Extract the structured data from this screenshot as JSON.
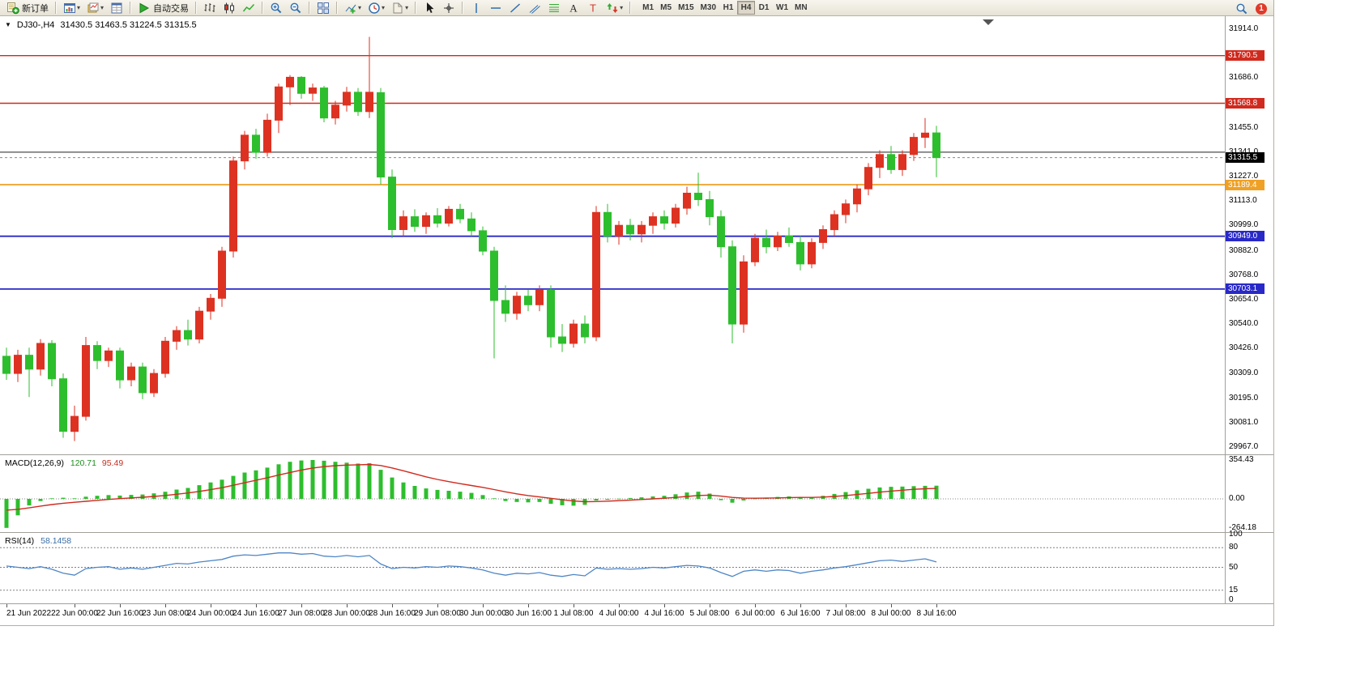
{
  "toolbar": {
    "groups": [
      {
        "items": [
          {
            "name": "new-order-button",
            "icon": "new-order-icon",
            "label": "新订单"
          }
        ]
      },
      {
        "items": [
          {
            "name": "new-chart-button",
            "icon": "new-chart-icon",
            "caret": true
          },
          {
            "name": "profiles-button",
            "icon": "profiles-icon",
            "caret": true
          },
          {
            "name": "data-window-button",
            "icon": "data-window-icon"
          }
        ]
      },
      {
        "items": [
          {
            "name": "autotrade-button",
            "icon": "autotrade-icon",
            "label": "自动交易"
          }
        ]
      },
      {
        "items": [
          {
            "name": "bars-button",
            "icon": "bars-icon"
          },
          {
            "name": "candlesticks-button",
            "icon": "candles-icon"
          },
          {
            "name": "line-chart-button",
            "icon": "line-chart-icon"
          }
        ]
      },
      {
        "items": [
          {
            "name": "zoom-in-button",
            "icon": "zoom-in-icon"
          },
          {
            "name": "zoom-out-button",
            "icon": "zoom-out-icon"
          }
        ]
      },
      {
        "items": [
          {
            "name": "tile-windows-button",
            "icon": "tile-windows-icon"
          }
        ]
      },
      {
        "items": [
          {
            "name": "indicators-button",
            "icon": "indicators-icon",
            "caret": true
          },
          {
            "name": "periods-button",
            "icon": "periods-icon",
            "caret": true
          },
          {
            "name": "templates-button",
            "icon": "templates-icon",
            "caret": true
          }
        ]
      },
      {
        "items": [
          {
            "name": "cursor-button",
            "icon": "cursor-icon"
          },
          {
            "name": "crosshair-button",
            "icon": "crosshair-icon"
          }
        ]
      },
      {
        "items": [
          {
            "name": "vertical-line-button",
            "icon": "vline-icon"
          },
          {
            "name": "horizontal-line-button",
            "icon": "hline-icon"
          },
          {
            "name": "trendline-button",
            "icon": "trendline-icon"
          },
          {
            "name": "channel-button",
            "icon": "channel-icon"
          },
          {
            "name": "fibonacci-button",
            "icon": "fibonacci-icon"
          },
          {
            "name": "text-button",
            "icon": "text-icon"
          },
          {
            "name": "label-button",
            "icon": "label-icon"
          },
          {
            "name": "arrows-button",
            "icon": "arrows-icon",
            "caret": true
          }
        ]
      }
    ],
    "timeframes": [
      "M1",
      "M5",
      "M15",
      "M30",
      "H1",
      "H4",
      "D1",
      "W1",
      "MN"
    ],
    "active_timeframe": "H4",
    "notification_badge": "1"
  },
  "symbol_bar": {
    "symbol": "DJ30-,H4",
    "ohlc_text": "31430.5 31463.5 31224.5 31315.5"
  },
  "colors": {
    "up": "#dd3222",
    "down": "#2dbe2d",
    "macd_hist": "#2dbe2d",
    "macd_signal": "#d02a1e",
    "rsi_line": "#4f86c6",
    "red_level": "#d02a1e",
    "orange_level": "#efa126",
    "blue_level": "#2929c8",
    "gray_level": "#4d4d4d",
    "current_tag_bg": "#000000"
  },
  "chart_data": {
    "type": "candlestick",
    "symbol": "DJ30-",
    "timeframe": "H4",
    "current_bar": {
      "open": 31430.5,
      "high": 31463.5,
      "low": 31224.5,
      "close": 31315.5
    },
    "price_scale": {
      "max": 31914.0,
      "min": 29967.0,
      "ticks": [
        31914.0,
        31686.0,
        31455.0,
        31341.0,
        31227.0,
        31113.0,
        30999.0,
        30882.0,
        30768.0,
        30654.0,
        30540.0,
        30426.0,
        30309.0,
        30195.0,
        30081.0,
        29967.0
      ]
    },
    "level_lines": [
      {
        "value": 31790.5,
        "color": "red_level",
        "width": 1.4,
        "tag": true
      },
      {
        "value": 31568.8,
        "color": "red_level",
        "width": 1.4,
        "tag": true
      },
      {
        "value": 31341.0,
        "color": "gray_level",
        "width": 1.2,
        "tag": false
      },
      {
        "value": 31189.4,
        "color": "orange_level",
        "width": 1.8,
        "tag": true
      },
      {
        "value": 30949.0,
        "color": "blue_level",
        "width": 1.8,
        "tag": true
      },
      {
        "value": 30703.1,
        "color": "blue_level",
        "width": 1.8,
        "tag": true
      }
    ],
    "current_price": 31315.5,
    "candles": [
      [
        30390,
        30430,
        30280,
        30310
      ],
      [
        30310,
        30420,
        30270,
        30395
      ],
      [
        30395,
        30430,
        30200,
        30330
      ],
      [
        30330,
        30470,
        30300,
        30450
      ],
      [
        30450,
        30465,
        30250,
        30285
      ],
      [
        30285,
        30310,
        30010,
        30040
      ],
      [
        30040,
        30160,
        29995,
        30110
      ],
      [
        30110,
        30480,
        30090,
        30440
      ],
      [
        30440,
        30460,
        30330,
        30370
      ],
      [
        30370,
        30430,
        30340,
        30415
      ],
      [
        30415,
        30430,
        30240,
        30280
      ],
      [
        30280,
        30360,
        30250,
        30340
      ],
      [
        30340,
        30360,
        30190,
        30220
      ],
      [
        30220,
        30330,
        30200,
        30310
      ],
      [
        30310,
        30480,
        30290,
        30460
      ],
      [
        30460,
        30530,
        30420,
        30510
      ],
      [
        30510,
        30560,
        30440,
        30470
      ],
      [
        30470,
        30620,
        30450,
        30600
      ],
      [
        30600,
        30680,
        30560,
        30660
      ],
      [
        30660,
        30900,
        30620,
        30880
      ],
      [
        30880,
        31320,
        30850,
        31300
      ],
      [
        31300,
        31440,
        31260,
        31420
      ],
      [
        31420,
        31450,
        31310,
        31340
      ],
      [
        31340,
        31520,
        31320,
        31490
      ],
      [
        31490,
        31660,
        31430,
        31645
      ],
      [
        31645,
        31700,
        31560,
        31690
      ],
      [
        31690,
        31695,
        31590,
        31615
      ],
      [
        31615,
        31660,
        31580,
        31640
      ],
      [
        31640,
        31650,
        31480,
        31500
      ],
      [
        31500,
        31580,
        31470,
        31560
      ],
      [
        31560,
        31645,
        31530,
        31620
      ],
      [
        31620,
        31640,
        31510,
        31530
      ],
      [
        31530,
        31878,
        31500,
        31620
      ],
      [
        31618,
        31640,
        31190,
        31225
      ],
      [
        31225,
        31260,
        30940,
        30980
      ],
      [
        30980,
        31070,
        30950,
        31040
      ],
      [
        31040,
        31075,
        30970,
        30995
      ],
      [
        30995,
        31060,
        30960,
        31045
      ],
      [
        31045,
        31080,
        30990,
        31010
      ],
      [
        31010,
        31090,
        30995,
        31075
      ],
      [
        31075,
        31100,
        31010,
        31030
      ],
      [
        31030,
        31060,
        30950,
        30975
      ],
      [
        30975,
        30995,
        30860,
        30880
      ],
      [
        30880,
        30900,
        30380,
        30650
      ],
      [
        30650,
        30720,
        30550,
        30590
      ],
      [
        30590,
        30690,
        30560,
        30670
      ],
      [
        30670,
        30700,
        30600,
        30630
      ],
      [
        30630,
        30720,
        30600,
        30700
      ],
      [
        30700,
        30720,
        30430,
        30480
      ],
      [
        30480,
        30540,
        30410,
        30450
      ],
      [
        30450,
        30560,
        30430,
        30540
      ],
      [
        30540,
        30580,
        30450,
        30480
      ],
      [
        30480,
        31090,
        30460,
        31060
      ],
      [
        31060,
        31100,
        30920,
        30950
      ],
      [
        30950,
        31020,
        30910,
        31000
      ],
      [
        31000,
        31030,
        30930,
        30960
      ],
      [
        30960,
        31020,
        30920,
        31000
      ],
      [
        31000,
        31060,
        30960,
        31040
      ],
      [
        31040,
        31070,
        30980,
        31010
      ],
      [
        31010,
        31100,
        30990,
        31080
      ],
      [
        31080,
        31180,
        31050,
        31150
      ],
      [
        31150,
        31245,
        31090,
        31120
      ],
      [
        31120,
        31160,
        31000,
        31040
      ],
      [
        31040,
        31070,
        30850,
        30900
      ],
      [
        30900,
        30930,
        30450,
        30540
      ],
      [
        30540,
        30860,
        30500,
        30830
      ],
      [
        30830,
        30960,
        30810,
        30940
      ],
      [
        30940,
        30980,
        30870,
        30900
      ],
      [
        30900,
        30970,
        30880,
        30950
      ],
      [
        30950,
        30990,
        30900,
        30920
      ],
      [
        30920,
        30950,
        30790,
        30820
      ],
      [
        30820,
        30940,
        30800,
        30920
      ],
      [
        30920,
        31000,
        30890,
        30980
      ],
      [
        30980,
        31070,
        30950,
        31050
      ],
      [
        31050,
        31120,
        31010,
        31100
      ],
      [
        31100,
        31190,
        31060,
        31170
      ],
      [
        31170,
        31290,
        31140,
        31270
      ],
      [
        31270,
        31350,
        31220,
        31330
      ],
      [
        31330,
        31370,
        31240,
        31260
      ],
      [
        31260,
        31350,
        31230,
        31330
      ],
      [
        31330,
        31430,
        31300,
        31410
      ],
      [
        31410,
        31500,
        31360,
        31430
      ],
      [
        31430.5,
        31463.5,
        31224.5,
        31315.5
      ]
    ],
    "time_labels": [
      {
        "bar": 0,
        "label": "21 Jun 2022"
      },
      {
        "bar": 6,
        "label": "22 Jun 00:00"
      },
      {
        "bar": 10,
        "label": "22 Jun 16:00"
      },
      {
        "bar": 14,
        "label": "23 Jun 08:00"
      },
      {
        "bar": 18,
        "label": "24 Jun 00:00"
      },
      {
        "bar": 22,
        "label": "24 Jun 16:00"
      },
      {
        "bar": 26,
        "label": "27 Jun 08:00"
      },
      {
        "bar": 30,
        "label": "28 Jun 00:00"
      },
      {
        "bar": 34,
        "label": "28 Jun 16:00"
      },
      {
        "bar": 38,
        "label": "29 Jun 08:00"
      },
      {
        "bar": 42,
        "label": "30 Jun 00:00"
      },
      {
        "bar": 46,
        "label": "30 Jun 16:00"
      },
      {
        "bar": 50,
        "label": "1 Jul 08:00"
      },
      {
        "bar": 54,
        "label": "4 Jul 00:00"
      },
      {
        "bar": 58,
        "label": "4 Jul 16:00"
      },
      {
        "bar": 62,
        "label": "5 Jul 08:00"
      },
      {
        "bar": 66,
        "label": "6 Jul 00:00"
      },
      {
        "bar": 70,
        "label": "6 Jul 16:00"
      },
      {
        "bar": 74,
        "label": "7 Jul 08:00"
      },
      {
        "bar": 78,
        "label": "8 Jul 00:00"
      },
      {
        "bar": 82,
        "label": "8 Jul 16:00"
      }
    ],
    "macd": {
      "name": "MACD(12,26,9)",
      "main_value": "120.71",
      "signal_value": "95.49",
      "max": 354.43,
      "min": -264.18,
      "axis_labels": [
        "354.43",
        "0.00",
        "-264.18"
      ],
      "histogram": [
        -264.18,
        -150,
        -60,
        -20,
        5,
        10,
        5,
        20,
        28,
        35,
        30,
        36,
        40,
        50,
        65,
        85,
        100,
        125,
        150,
        175,
        210,
        240,
        260,
        285,
        315,
        338,
        350,
        354.43,
        348,
        338,
        330,
        322,
        325,
        265,
        195,
        150,
        118,
        95,
        82,
        74,
        66,
        55,
        35,
        5,
        -20,
        -28,
        -32,
        -28,
        -45,
        -58,
        -62,
        -55,
        -15,
        -8,
        2,
        8,
        14,
        22,
        28,
        42,
        58,
        66,
        48,
        -12,
        -35,
        -15,
        4,
        12,
        18,
        22,
        16,
        14,
        28,
        45,
        62,
        78,
        92,
        104,
        110,
        112,
        116,
        119,
        120.71
      ],
      "signal": [
        -103,
        -95,
        -82,
        -66,
        -52,
        -40,
        -31,
        -22,
        -13,
        -5,
        2,
        9,
        15,
        22,
        31,
        42,
        54,
        68,
        84,
        102,
        124,
        147,
        170,
        193,
        217,
        241,
        263,
        281,
        294,
        303,
        308,
        311,
        314,
        304,
        282,
        256,
        228,
        201,
        177,
        157,
        139,
        122,
        105,
        85,
        64,
        46,
        30,
        18,
        5,
        -8,
        -19,
        -26,
        -24,
        -21,
        -16,
        -11,
        -6,
        0,
        6,
        13,
        22,
        31,
        34,
        25,
        13,
        7,
        6,
        7,
        9,
        12,
        13,
        13,
        16,
        22,
        30,
        40,
        50,
        61,
        71,
        79,
        87,
        92,
        95.49
      ]
    },
    "rsi": {
      "name": "RSI(14)",
      "value": "58.1458",
      "axis_labels": [
        "100",
        "80",
        "50",
        "15",
        "0"
      ],
      "levels": [
        80,
        50,
        15
      ],
      "series": [
        52,
        50,
        48,
        51,
        47,
        41,
        38,
        48,
        50,
        51,
        47,
        49,
        47,
        50,
        53,
        56,
        55,
        58,
        60,
        62,
        67,
        69,
        68,
        70,
        72,
        72,
        70,
        71,
        67,
        66,
        68,
        66,
        68,
        55,
        48,
        50,
        49,
        51,
        50,
        52,
        51,
        49,
        46,
        41,
        38,
        41,
        40,
        42,
        38,
        36,
        39,
        37,
        49,
        47,
        48,
        47,
        48,
        50,
        49,
        51,
        53,
        52,
        49,
        42,
        36,
        44,
        46,
        44,
        46,
        45,
        41,
        44,
        46,
        49,
        51,
        54,
        57,
        60,
        61,
        59,
        61,
        63,
        58.15
      ]
    }
  }
}
